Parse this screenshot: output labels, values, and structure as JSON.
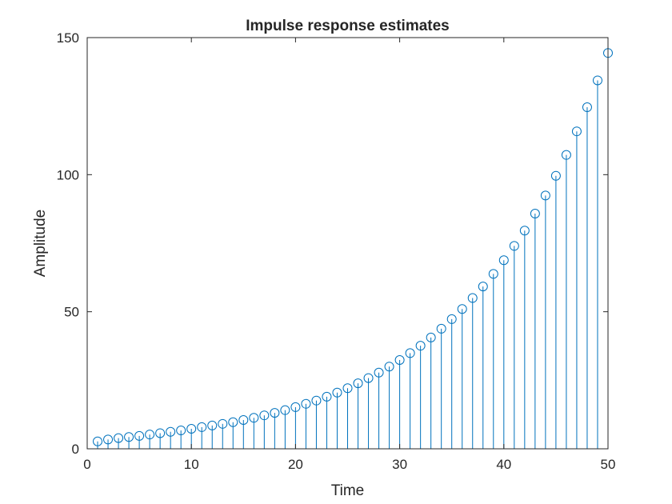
{
  "chart_data": {
    "type": "stem",
    "title": "Impulse response estimates",
    "xlabel": "Time",
    "ylabel": "Amplitude",
    "xlim": [
      0,
      50
    ],
    "ylim": [
      0,
      150
    ],
    "xticks": [
      0,
      10,
      20,
      30,
      40,
      50
    ],
    "yticks": [
      0,
      50,
      100,
      150
    ],
    "xtick_labels": [
      "0",
      "10",
      "20",
      "30",
      "40",
      "50"
    ],
    "ytick_labels": [
      "0",
      "50",
      "100",
      "150"
    ],
    "grid": false,
    "legend": "none",
    "colors": {
      "series": "#0072BD",
      "axes": "#262626",
      "background": "#ffffff"
    },
    "series": [
      {
        "x": [
          1,
          2,
          3,
          4,
          5,
          6,
          7,
          8,
          9,
          10,
          11,
          12,
          13,
          14,
          15,
          16,
          17,
          18,
          19,
          20,
          21,
          22,
          23,
          24,
          25,
          26,
          27,
          28,
          29,
          30,
          31,
          32,
          33,
          34,
          35,
          36,
          37,
          38,
          39,
          40,
          41,
          42,
          43,
          44,
          45,
          46,
          47,
          48,
          49,
          50
        ],
        "values": [
          2.7,
          3.4,
          3.9,
          4.3,
          4.7,
          5.2,
          5.7,
          6.2,
          6.7,
          7.3,
          7.9,
          8.5,
          9.1,
          9.7,
          10.5,
          11.3,
          12.2,
          13.1,
          14.1,
          15.2,
          16.4,
          17.6,
          19.0,
          20.5,
          22.1,
          23.9,
          25.8,
          27.8,
          30.0,
          32.4,
          34.9,
          37.6,
          40.6,
          43.8,
          47.3,
          51.0,
          55.0,
          59.2,
          63.8,
          68.8,
          74.0,
          79.6,
          85.8,
          92.4,
          99.6,
          107.2,
          115.8,
          124.6,
          134.4,
          144.4
        ]
      }
    ]
  }
}
